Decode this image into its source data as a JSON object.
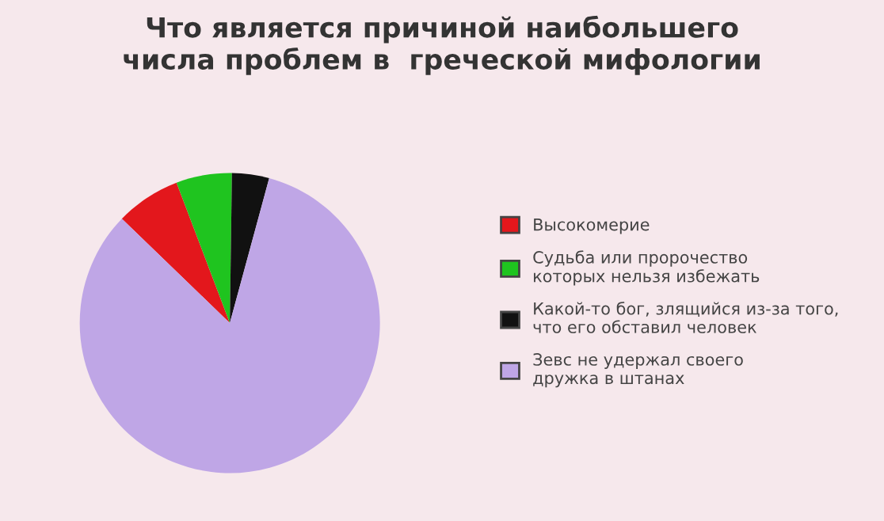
{
  "chart_data": {
    "type": "pie",
    "title": "Что является причиной наибольшего\nчисла проблем в  греческой мифологии",
    "categories": [
      "Высокомерие",
      "Судьба или пророчество\nкоторых нельзя избежать",
      "Какой-то бог, злящийся из-за того,\nчто его обставил человек",
      "Зевс не удержал своего\nдружка в штанах"
    ],
    "values": [
      7,
      6,
      4,
      83
    ],
    "colors": [
      "#e3171c",
      "#1fc41f",
      "#111111",
      "#bfa6e6"
    ],
    "legend": "right"
  }
}
